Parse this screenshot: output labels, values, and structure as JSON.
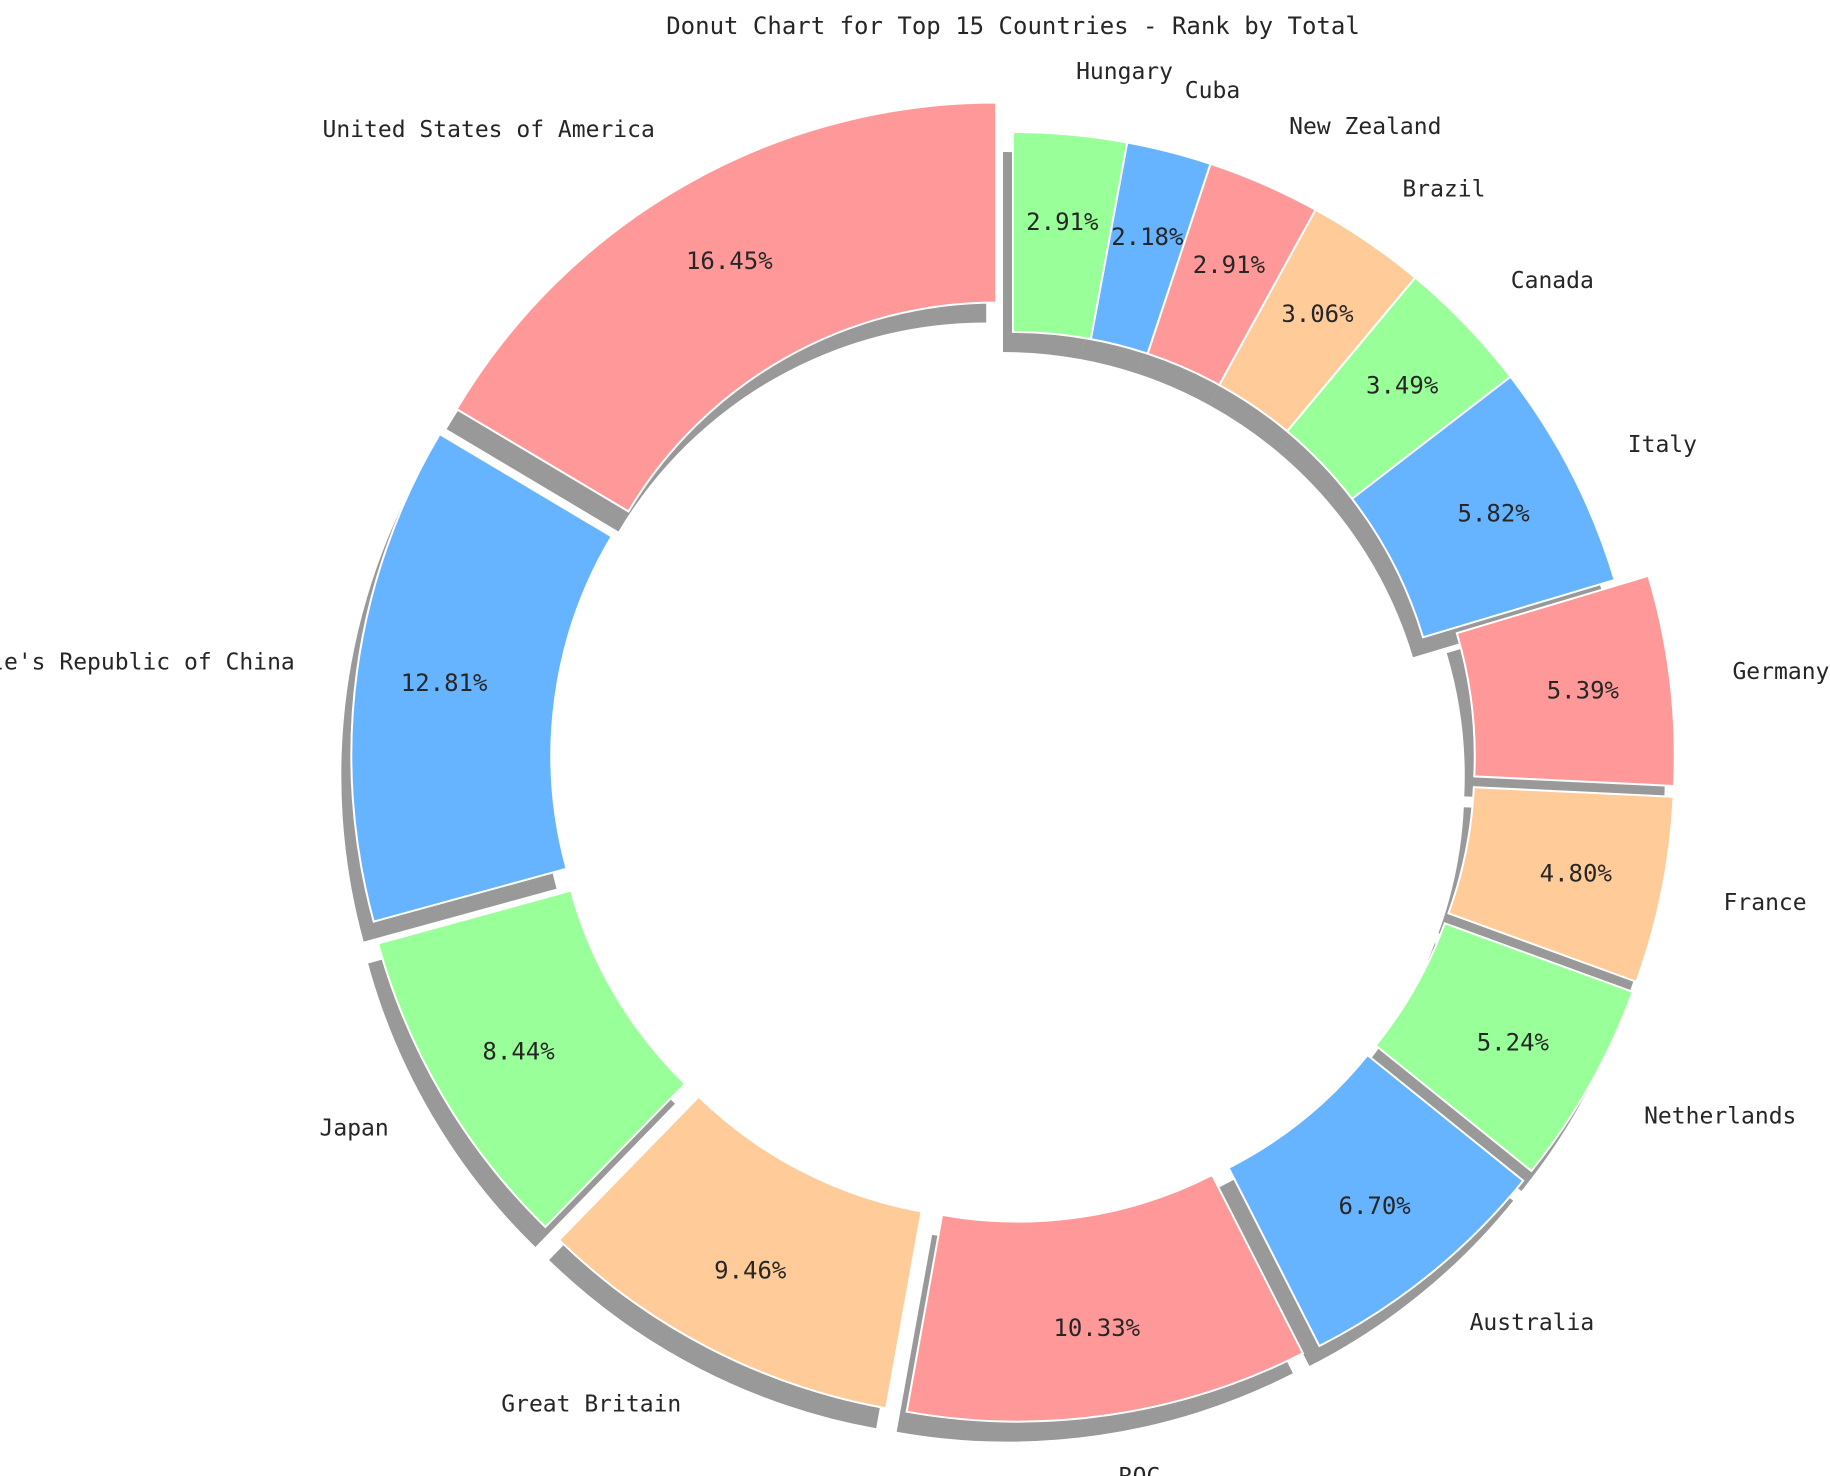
{
  "chart_data": {
    "type": "pie",
    "title": "Donut Chart for Top 15 Countries - Rank by Total",
    "categories": [
      "United States of America",
      "People's Republic of China",
      "Japan",
      "Great Britain",
      "ROC",
      "Australia",
      "Netherlands",
      "France",
      "Germany",
      "Italy",
      "Canada",
      "Brazil",
      "New Zealand",
      "Cuba",
      "Hungary"
    ],
    "values": [
      16.45,
      12.81,
      8.44,
      9.46,
      10.33,
      6.7,
      5.24,
      4.8,
      5.39,
      5.82,
      3.49,
      3.06,
      2.91,
      2.18,
      2.91
    ],
    "percent_labels": [
      "16.45%",
      "12.81%",
      "8.44%",
      "9.46%",
      "10.33%",
      "6.70%",
      "5.24%",
      "4.80%",
      "5.39%",
      "5.82%",
      "3.49%",
      "3.06%",
      "2.91%",
      "2.18%",
      "2.91%"
    ],
    "exploded": [
      true,
      true,
      true,
      true,
      true,
      true,
      true,
      true,
      true,
      false,
      false,
      false,
      false,
      false,
      false
    ],
    "colors": [
      "#ff9999",
      "#66b3ff",
      "#99ff99",
      "#ffcc99",
      "#ff9999",
      "#66b3ff",
      "#99ff99",
      "#ffcc99",
      "#ff9999",
      "#66b3ff",
      "#99ff99",
      "#ffcc99",
      "#ff9999",
      "#66b3ff",
      "#99ff99"
    ],
    "start_angle_deg": 90,
    "direction": "counterclockwise",
    "donut": true,
    "shadow": true
  }
}
